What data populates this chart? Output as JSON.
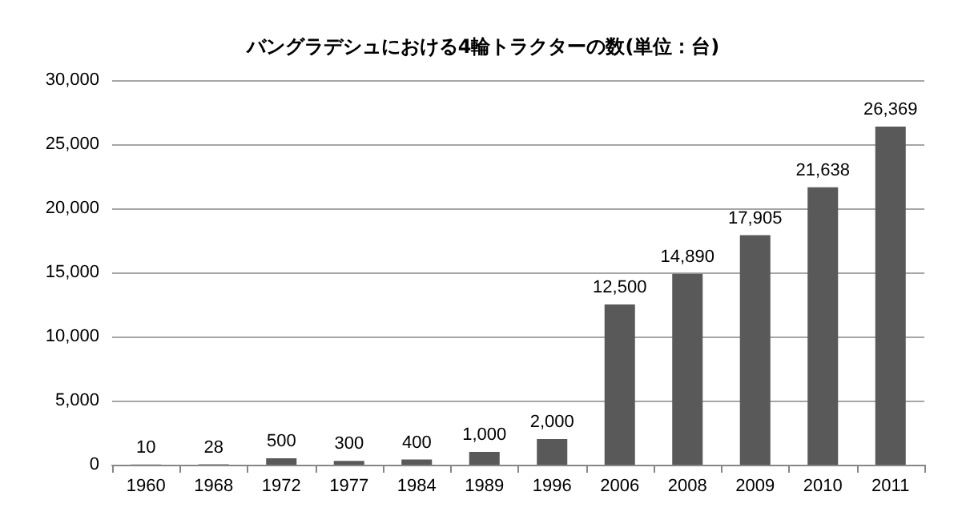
{
  "chart_data": {
    "type": "bar",
    "title": "バングラデシュにおける4輪トラクターの数(単位：台)",
    "categories": [
      "1960",
      "1968",
      "1972",
      "1977",
      "1984",
      "1989",
      "1996",
      "2006",
      "2008",
      "2009",
      "2010",
      "2011"
    ],
    "values": [
      10,
      28,
      500,
      300,
      400,
      1000,
      2000,
      12500,
      14890,
      17905,
      21638,
      26369
    ],
    "value_labels": [
      "10",
      "28",
      "500",
      "300",
      "400",
      "1,000",
      "2,000",
      "12,500",
      "14,890",
      "17,905",
      "21,638",
      "26,369"
    ],
    "color": "#595959",
    "ylim": [
      0,
      30000
    ],
    "yticks": [
      0,
      {
        "value": 5000,
        "label": "5,000"
      },
      {
        "value": 10000,
        "label": "10,000"
      },
      {
        "value": 15000,
        "label": "15,000"
      },
      {
        "value": 20000,
        "label": "20,000"
      },
      {
        "value": 25000,
        "label": "25,000"
      },
      {
        "value": 30000,
        "label": "30,000"
      }
    ],
    "grid": "y"
  }
}
